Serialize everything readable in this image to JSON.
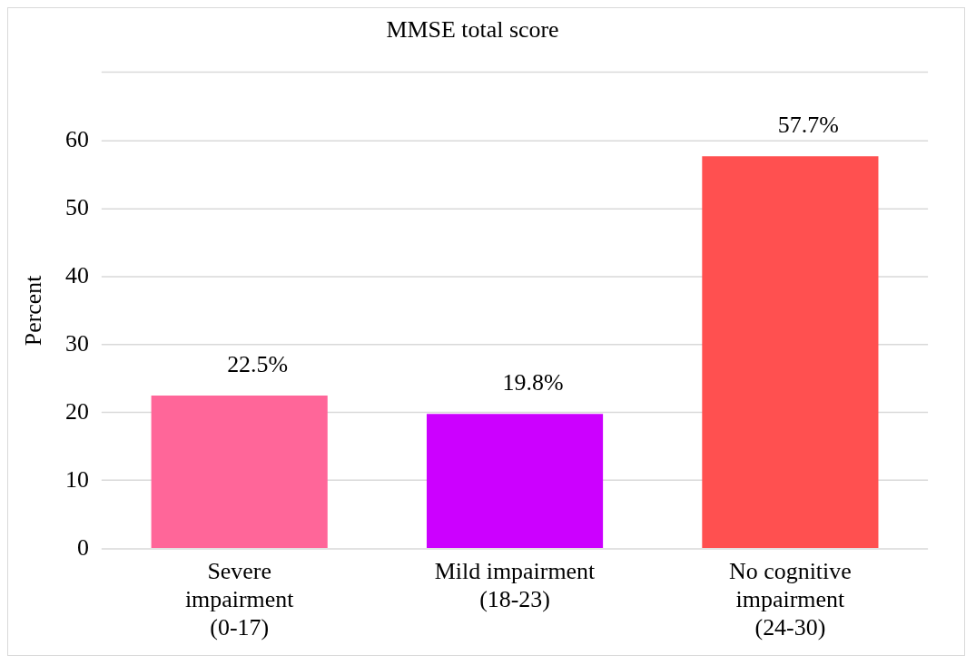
{
  "chart_data": {
    "type": "bar",
    "title": "MMSE total score",
    "ylabel": "Percent",
    "categories": [
      "Severe impairment (0-17)",
      "Mild impairment (18-23)",
      "No cognitive impairment (24-30)"
    ],
    "values": [
      22.5,
      19.8,
      57.7
    ],
    "colors": [
      "#ff6699",
      "#cc00ff",
      "#ff5050"
    ],
    "value_labels": [
      "22.5%",
      "19.8%",
      "57.7%"
    ],
    "ylim": [
      0,
      70
    ],
    "yticks": [
      0,
      10,
      20,
      30,
      40,
      50,
      60,
      {
        "value": 70,
        "label": null
      }
    ],
    "grid": "y",
    "legend": false
  }
}
